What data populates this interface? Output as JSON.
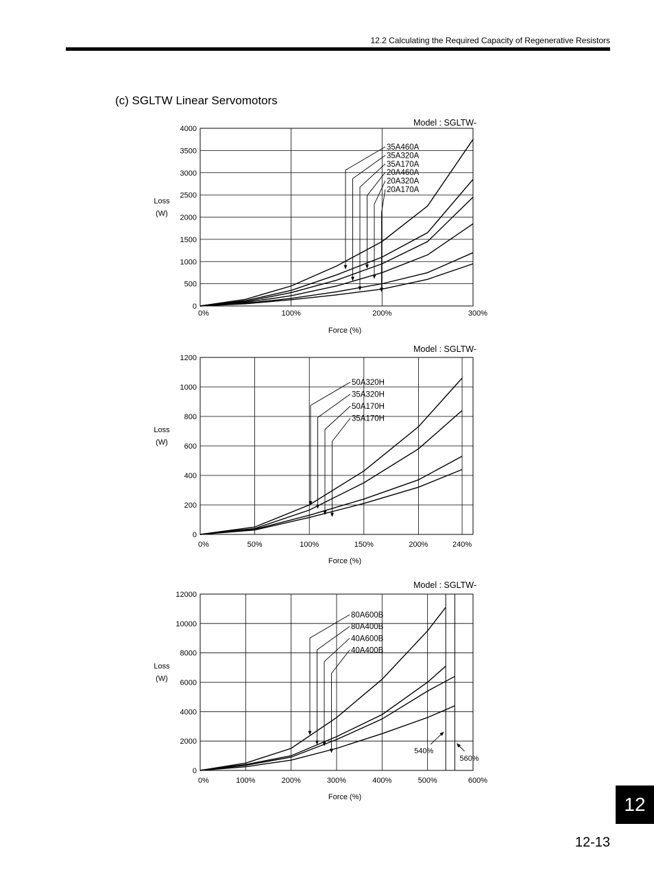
{
  "header": {
    "running_title": "12.2  Calculating the Required Capacity of Regenerative Resistors"
  },
  "section": {
    "title": "(c) SGLTW Linear Servomotors"
  },
  "page": {
    "tab": "12",
    "number": "12-13"
  },
  "chart_data": [
    {
      "type": "line",
      "model_label": "Model : SGLTW-",
      "ylabel": "Loss\n(W)",
      "xlabel": "Force (%)",
      "xlim": [
        0,
        300
      ],
      "ylim": [
        0,
        4000
      ],
      "x_ticks": [
        0,
        100,
        200,
        300
      ],
      "x_tick_labels": [
        "0%",
        "100%",
        "200%",
        "300%"
      ],
      "y_ticks": [
        0,
        500,
        1000,
        1500,
        2000,
        2500,
        3000,
        3500,
        4000
      ],
      "y_tick_labels": [
        "0",
        "500",
        "1000",
        "1500",
        "2000",
        "2500",
        "3000",
        "3500",
        "4000"
      ],
      "series": [
        {
          "name": "35A460A",
          "x": [
            0,
            50,
            100,
            150,
            200,
            250,
            300
          ],
          "y": [
            0,
            150,
            450,
            900,
            1450,
            2250,
            3750
          ]
        },
        {
          "name": "35A320A",
          "x": [
            0,
            50,
            100,
            150,
            200,
            250,
            300
          ],
          "y": [
            0,
            120,
            350,
            700,
            1100,
            1650,
            2850
          ]
        },
        {
          "name": "35A170A",
          "x": [
            0,
            50,
            100,
            150,
            200,
            250,
            300
          ],
          "y": [
            0,
            100,
            300,
            580,
            950,
            1450,
            2450
          ]
        },
        {
          "name": "20A460A",
          "x": [
            0,
            50,
            100,
            150,
            200,
            250,
            300
          ],
          "y": [
            0,
            80,
            230,
            450,
            750,
            1150,
            1850
          ]
        },
        {
          "name": "20A320A",
          "x": [
            0,
            50,
            100,
            150,
            200,
            250,
            300
          ],
          "y": [
            0,
            60,
            170,
            320,
            500,
            750,
            1200
          ]
        },
        {
          "name": "20A170A",
          "x": [
            0,
            50,
            100,
            150,
            200,
            250,
            300
          ],
          "y": [
            0,
            50,
            140,
            250,
            380,
            600,
            950
          ]
        }
      ]
    },
    {
      "type": "line",
      "model_label": "Model : SGLTW-",
      "ylabel": "Loss\n(W)",
      "xlabel": "Force (%)",
      "xlim": [
        0,
        250
      ],
      "ylim": [
        0,
        1200
      ],
      "x_ticks": [
        0,
        50,
        100,
        150,
        200,
        240
      ],
      "x_tick_labels": [
        "0%",
        "50%",
        "100%",
        "150%",
        "200%",
        "240%"
      ],
      "y_ticks": [
        0,
        200,
        400,
        600,
        800,
        1000,
        1200
      ],
      "y_tick_labels": [
        "0",
        "200",
        "400",
        "600",
        "800",
        "1000",
        "1200"
      ],
      "series": [
        {
          "name": "50A320H",
          "x": [
            0,
            50,
            100,
            150,
            200,
            240
          ],
          "y": [
            0,
            50,
            200,
            430,
            730,
            1060
          ]
        },
        {
          "name": "35A320H",
          "x": [
            0,
            50,
            100,
            150,
            200,
            240
          ],
          "y": [
            0,
            40,
            165,
            350,
            580,
            840
          ]
        },
        {
          "name": "50A170H",
          "x": [
            0,
            50,
            100,
            150,
            200,
            240
          ],
          "y": [
            0,
            35,
            130,
            240,
            370,
            530
          ]
        },
        {
          "name": "35A170H",
          "x": [
            0,
            50,
            100,
            150,
            200,
            240
          ],
          "y": [
            0,
            30,
            115,
            210,
            320,
            440
          ]
        }
      ]
    },
    {
      "type": "line",
      "model_label": "Model : SGLTW-",
      "ylabel": "Loss\n(W)",
      "xlabel": "Force (%)",
      "xlim": [
        0,
        600
      ],
      "ylim": [
        0,
        12000
      ],
      "x_ticks": [
        0,
        100,
        200,
        300,
        400,
        500,
        600
      ],
      "x_tick_labels": [
        "0%",
        "100%",
        "200%",
        "300%",
        "400%",
        "500%",
        "600%"
      ],
      "y_ticks": [
        0,
        2000,
        4000,
        6000,
        8000,
        10000,
        12000
      ],
      "y_tick_labels": [
        "0",
        "2000",
        "4000",
        "6000",
        "8000",
        "10000",
        "12000"
      ],
      "series": [
        {
          "name": "80A600B",
          "x": [
            0,
            100,
            200,
            300,
            400,
            500,
            540
          ],
          "y": [
            0,
            500,
            1500,
            3600,
            6200,
            9500,
            11100
          ]
        },
        {
          "name": "80A400B",
          "x": [
            0,
            100,
            200,
            300,
            400,
            500,
            540
          ],
          "y": [
            0,
            400,
            1000,
            2300,
            3800,
            6000,
            7100
          ]
        },
        {
          "name": "40A600B",
          "x": [
            0,
            100,
            200,
            300,
            400,
            500,
            560
          ],
          "y": [
            0,
            350,
            900,
            2100,
            3500,
            5400,
            6400
          ]
        },
        {
          "name": "40A400B",
          "x": [
            0,
            100,
            200,
            300,
            400,
            500,
            560
          ],
          "y": [
            0,
            250,
            700,
            1500,
            2500,
            3600,
            4400
          ]
        }
      ],
      "annotations": [
        {
          "text": "540%",
          "x": 540
        },
        {
          "text": "560%",
          "x": 560
        }
      ]
    }
  ]
}
